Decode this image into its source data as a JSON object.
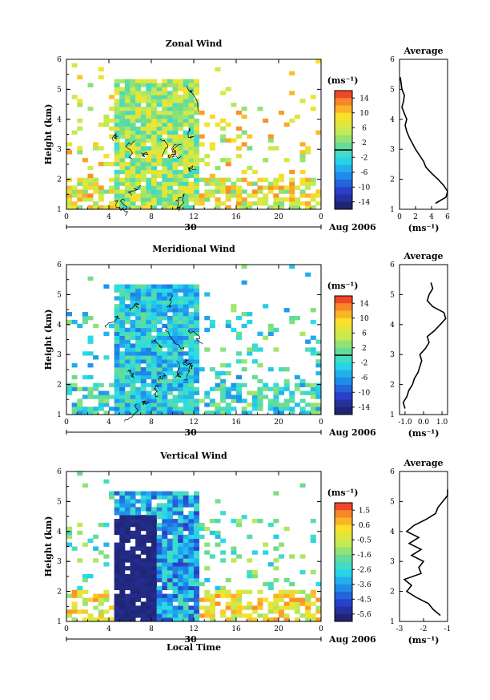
{
  "chart_data": [
    {
      "type": "heatmap",
      "title": "Zonal Wind",
      "ylabel": "Height (km)",
      "ylim": [
        1,
        6
      ],
      "yticks": [
        "1",
        "2",
        "3",
        "4",
        "5",
        "6"
      ],
      "xlim": [
        0,
        24
      ],
      "xticks": [
        "0",
        "4",
        "8",
        "12",
        "16",
        "20",
        "0"
      ],
      "date_day": "30",
      "date_month": "Aug 2006",
      "colorbar": {
        "title": "(ms⁻¹)",
        "range": [
          -16,
          16
        ],
        "ticks": [
          "14",
          "10",
          "6",
          "2",
          "-2",
          "-6",
          "-10",
          "-14"
        ],
        "zero_line": 0
      },
      "data_window": {
        "start": 4.5,
        "end": 12.5,
        "top": 5.4
      },
      "average": {
        "title": "Average",
        "xlim": [
          0,
          6
        ],
        "xticks": [
          "0",
          "2",
          "4",
          "6"
        ],
        "xlabel": "(ms⁻¹)",
        "height": [
          1.2,
          1.4,
          1.6,
          1.8,
          2.0,
          2.2,
          2.4,
          2.6,
          2.8,
          3.0,
          3.2,
          3.4,
          3.6,
          3.8,
          4.0,
          4.2,
          4.4,
          4.6,
          4.8,
          5.0,
          5.2,
          5.4
        ],
        "value": [
          4.5,
          5.8,
          6.0,
          5.5,
          4.8,
          4.0,
          3.3,
          3.0,
          2.5,
          2.0,
          1.6,
          1.2,
          0.9,
          0.7,
          0.9,
          0.6,
          0.3,
          0.5,
          0.6,
          0.3,
          0.2,
          0.1
        ]
      }
    },
    {
      "type": "heatmap",
      "title": "Meridional Wind",
      "ylabel": "Height (km)",
      "ylim": [
        1,
        6
      ],
      "yticks": [
        "1",
        "2",
        "3",
        "4",
        "5",
        "6"
      ],
      "xlim": [
        0,
        24
      ],
      "xticks": [
        "0",
        "4",
        "8",
        "12",
        "16",
        "20",
        "0"
      ],
      "date_day": "30",
      "date_month": "Aug 2006",
      "colorbar": {
        "title": "(ms⁻¹)",
        "range": [
          -16,
          16
        ],
        "ticks": [
          "14",
          "10",
          "6",
          "2",
          "-2",
          "-6",
          "-10",
          "-14"
        ],
        "zero_line": 0
      },
      "data_window": {
        "start": 4.5,
        "end": 12.5,
        "top": 5.4
      },
      "average": {
        "title": "Average",
        "xlim": [
          -1.3,
          1.3
        ],
        "xticks": [
          "-1.0",
          "0.0",
          "1.0"
        ],
        "xlabel": "(ms⁻¹)",
        "height": [
          1.2,
          1.4,
          1.6,
          1.8,
          2.0,
          2.2,
          2.4,
          2.6,
          2.8,
          3.0,
          3.2,
          3.4,
          3.6,
          3.8,
          4.0,
          4.2,
          4.4,
          4.6,
          4.8,
          5.0,
          5.2,
          5.4
        ],
        "value": [
          -1.0,
          -1.1,
          -0.9,
          -0.8,
          -0.6,
          -0.5,
          -0.3,
          -0.2,
          -0.1,
          -0.2,
          0.1,
          0.3,
          0.2,
          0.6,
          0.9,
          1.2,
          1.1,
          0.5,
          0.2,
          0.3,
          0.5,
          0.4
        ]
      }
    },
    {
      "type": "heatmap",
      "title": "Vertical Wind",
      "ylabel": "Height (km)",
      "xlabel": "Local Time",
      "ylim": [
        1,
        6
      ],
      "yticks": [
        "1",
        "2",
        "3",
        "4",
        "5",
        "6"
      ],
      "xlim": [
        0,
        24
      ],
      "xticks": [
        "0",
        "4",
        "8",
        "12",
        "16",
        "20",
        "0"
      ],
      "date_day": "30",
      "date_month": "Aug 2006",
      "colorbar": {
        "title": "(ms⁻¹)",
        "range": [
          -6.0,
          2.0
        ],
        "ticks": [
          "1.5",
          "0.6",
          "-0.5",
          "-1.6",
          "-2.6",
          "-3.6",
          "-4.5",
          "-5.6"
        ],
        "zero_line": null
      },
      "data_window": {
        "start": 4.5,
        "end": 12.5,
        "top": 5.4
      },
      "average": {
        "title": "Average",
        "xlim": [
          -3,
          -1
        ],
        "xticks": [
          "-3",
          "-2",
          "-1"
        ],
        "xlabel": "(ms⁻¹)",
        "height": [
          1.2,
          1.4,
          1.6,
          1.8,
          2.0,
          2.2,
          2.4,
          2.6,
          2.8,
          3.0,
          3.2,
          3.4,
          3.6,
          3.8,
          4.0,
          4.2,
          4.4,
          4.6,
          4.8,
          5.0,
          5.2,
          5.4
        ],
        "value": [
          -1.3,
          -1.6,
          -1.8,
          -2.3,
          -2.7,
          -2.5,
          -2.8,
          -2.1,
          -2.2,
          -2.0,
          -2.5,
          -2.1,
          -2.6,
          -2.2,
          -2.7,
          -2.4,
          -1.9,
          -1.5,
          -1.4,
          -1.2,
          -1.0,
          -1.0
        ]
      }
    }
  ]
}
